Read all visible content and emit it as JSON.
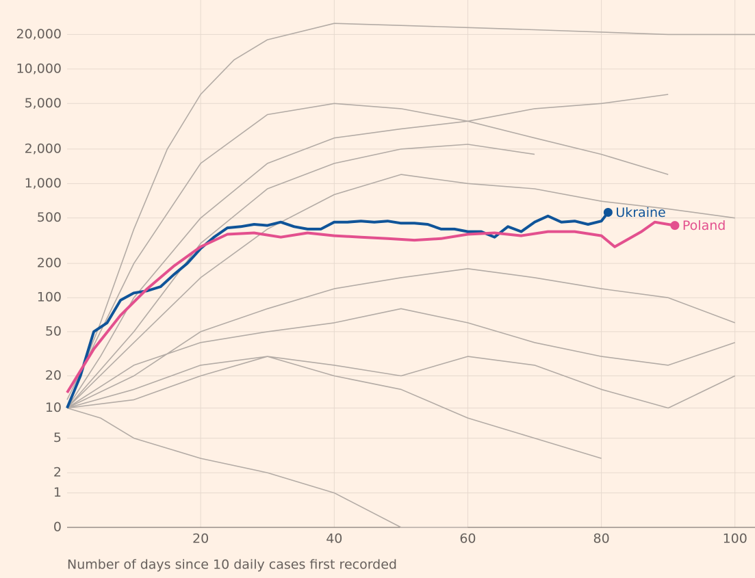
{
  "chart_data": {
    "type": "line",
    "xlabel": "Number of days since 10 daily cases first recorded",
    "xlim": [
      0,
      103
    ],
    "xticks": [
      20,
      40,
      60,
      80,
      100
    ],
    "ylim": [
      0,
      40000
    ],
    "yscale": "log1p",
    "yticks": [
      0,
      1,
      2,
      5,
      10,
      20,
      50,
      100,
      200,
      500,
      {
        "value": 1000,
        "label": "1,000"
      },
      {
        "value": 2000,
        "label": "2,000"
      },
      {
        "value": 5000,
        "label": "5,000"
      },
      {
        "value": 10000,
        "label": "10,000"
      },
      {
        "value": 20000,
        "label": "20,000"
      }
    ],
    "grid": true,
    "series": [
      {
        "color": "#b3aba5",
        "x": [
          0,
          5,
          10,
          15,
          20,
          25,
          30,
          40,
          50,
          60,
          70,
          80,
          90,
          103
        ],
        "values": [
          10,
          60,
          400,
          2000,
          6000,
          12000,
          18000,
          25000,
          24000,
          23000,
          22000,
          21000,
          20000,
          20000
        ]
      },
      {
        "color": "#b3aba5",
        "x": [
          0,
          5,
          10,
          20,
          30,
          40,
          50,
          60,
          70,
          80,
          90
        ],
        "values": [
          12,
          50,
          200,
          1500,
          4000,
          5000,
          4500,
          3500,
          2500,
          1800,
          1200
        ]
      },
      {
        "color": "#b3aba5",
        "x": [
          0,
          5,
          10,
          20,
          30,
          40,
          50,
          60,
          70,
          80,
          90
        ],
        "values": [
          10,
          30,
          100,
          500,
          1500,
          2500,
          3000,
          3500,
          4500,
          5000,
          6000
        ]
      },
      {
        "color": "#b3aba5",
        "x": [
          0,
          10,
          20,
          30,
          40,
          50,
          60,
          70,
          80,
          90,
          100
        ],
        "values": [
          10,
          40,
          150,
          400,
          800,
          1200,
          1000,
          900,
          700,
          600,
          500
        ]
      },
      {
        "color": "#b3aba5",
        "x": [
          0,
          10,
          20,
          30,
          40,
          50,
          60,
          70,
          80,
          90,
          100
        ],
        "values": [
          10,
          20,
          50,
          80,
          120,
          150,
          180,
          150,
          120,
          100,
          60
        ]
      },
      {
        "color": "#b3aba5",
        "x": [
          0,
          10,
          20,
          30,
          40,
          50,
          60,
          70,
          80
        ],
        "values": [
          10,
          15,
          25,
          30,
          20,
          15,
          8,
          5,
          3
        ]
      },
      {
        "color": "#b3aba5",
        "x": [
          0,
          5,
          10,
          20,
          30,
          40,
          50,
          60
        ],
        "values": [
          10,
          8,
          5,
          3,
          2,
          1,
          0,
          0
        ]
      },
      {
        "color": "#b3aba5",
        "x": [
          0,
          10,
          20,
          30,
          40,
          50,
          60,
          70,
          80,
          90,
          100
        ],
        "values": [
          10,
          25,
          40,
          50,
          60,
          80,
          60,
          40,
          30,
          25,
          40
        ]
      },
      {
        "color": "#b3aba5",
        "x": [
          0,
          10,
          20,
          30,
          40,
          50,
          60,
          70
        ],
        "values": [
          10,
          50,
          300,
          900,
          1500,
          2000,
          2200,
          1800
        ]
      },
      {
        "color": "#b3aba5",
        "x": [
          0,
          10,
          20,
          30,
          40,
          50,
          60,
          70,
          80,
          90,
          100
        ],
        "values": [
          10,
          12,
          20,
          30,
          25,
          20,
          30,
          25,
          15,
          10,
          20
        ]
      },
      {
        "name": "Ukraine",
        "color": "#0f5499",
        "x": [
          0,
          2,
          4,
          6,
          8,
          10,
          12,
          14,
          16,
          18,
          20,
          22,
          24,
          26,
          28,
          30,
          32,
          34,
          36,
          38,
          40,
          42,
          44,
          46,
          48,
          50,
          52,
          54,
          56,
          58,
          60,
          62,
          64,
          66,
          68,
          70,
          72,
          74,
          76,
          78,
          80,
          81
        ],
        "values": [
          10,
          20,
          50,
          60,
          95,
          110,
          115,
          125,
          160,
          200,
          270,
          340,
          410,
          420,
          440,
          430,
          460,
          420,
          400,
          400,
          460,
          460,
          470,
          460,
          470,
          450,
          450,
          440,
          400,
          400,
          380,
          380,
          340,
          420,
          380,
          460,
          520,
          460,
          470,
          440,
          470,
          560
        ]
      },
      {
        "name": "Poland",
        "color": "#e3508e",
        "x": [
          0,
          4,
          8,
          12,
          16,
          20,
          24,
          28,
          32,
          36,
          40,
          44,
          48,
          52,
          56,
          60,
          64,
          68,
          72,
          76,
          80,
          82,
          86,
          88,
          91
        ],
        "values": [
          14,
          35,
          70,
          120,
          190,
          280,
          360,
          370,
          340,
          370,
          350,
          340,
          330,
          320,
          330,
          360,
          370,
          350,
          380,
          380,
          350,
          280,
          380,
          460,
          430
        ]
      }
    ]
  }
}
